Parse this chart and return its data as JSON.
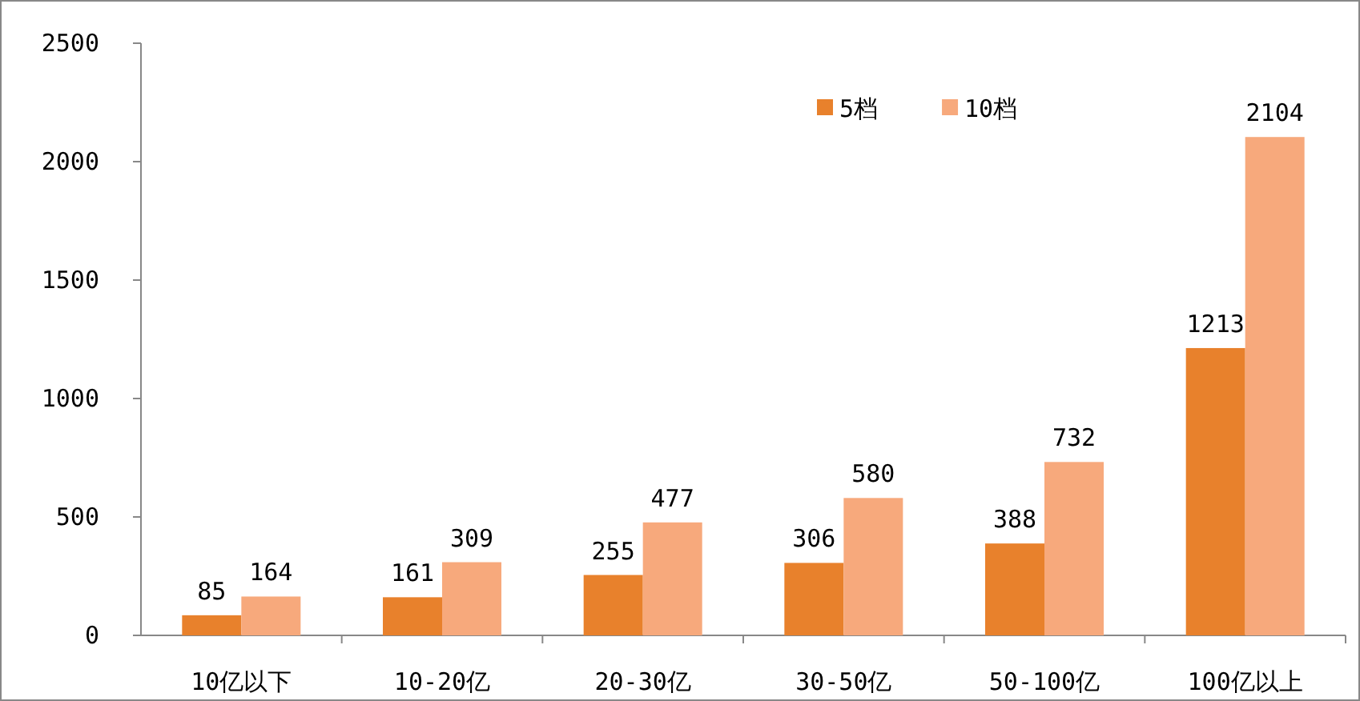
{
  "chart_data": {
    "type": "bar",
    "categories": [
      "10亿以下",
      "10-20亿",
      "20-30亿",
      "30-50亿",
      "50-100亿",
      "100亿以上"
    ],
    "series": [
      {
        "name": "5档",
        "color": "#e8812c",
        "values": [
          85,
          161,
          255,
          306,
          388,
          1213
        ]
      },
      {
        "name": "10档",
        "color": "#f7a97c",
        "values": [
          164,
          309,
          477,
          580,
          732,
          2104
        ]
      }
    ],
    "ylim": [
      0,
      2500
    ],
    "yticks": [
      0,
      500,
      1000,
      1500,
      2000,
      2500
    ],
    "data_labels": true,
    "legend": "top right"
  }
}
